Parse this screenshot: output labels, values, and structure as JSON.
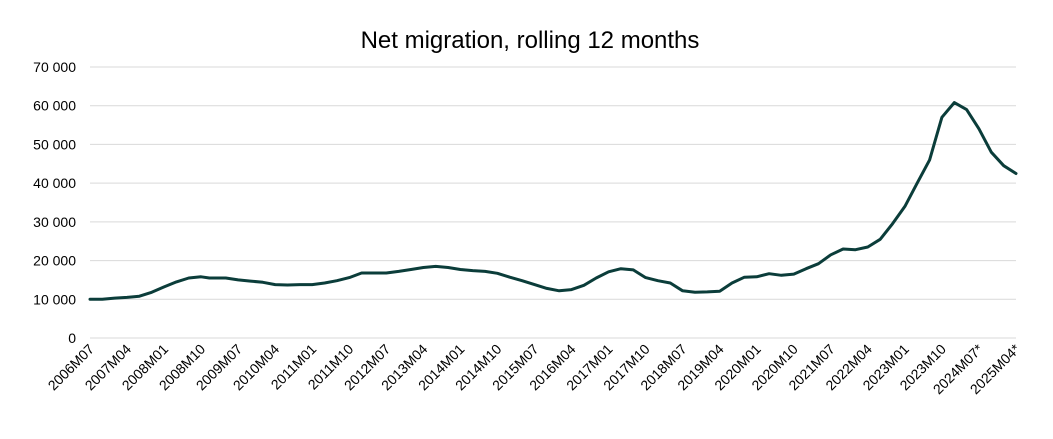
{
  "chart_data": {
    "type": "line",
    "title": "Net migration, rolling 12 months",
    "xlabel": "",
    "ylabel": "",
    "ylim": [
      0,
      70000
    ],
    "y_ticks": [
      "0",
      "10 000",
      "20 000",
      "30 000",
      "40 000",
      "50 000",
      "60 000",
      "70 000"
    ],
    "y_tick_values": [
      0,
      10000,
      20000,
      30000,
      40000,
      50000,
      60000,
      70000
    ],
    "x_start": "2006M07",
    "x_end": "2025M04",
    "x_ticks": [
      "2006M07",
      "2007M04",
      "2008M01",
      "2008M10",
      "2009M07",
      "2010M04",
      "2011M01",
      "2011M10",
      "2012M07",
      "2013M04",
      "2014M01",
      "2014M10",
      "2015M07",
      "2016M04",
      "2017M01",
      "2017M10",
      "2018M07",
      "2019M04",
      "2020M01",
      "2020M10",
      "2021M07",
      "2022M04",
      "2023M01",
      "2023M10",
      "2024M07*",
      "2025M04*"
    ],
    "grid": true,
    "legend": "none",
    "line_color": "#0b3d3a",
    "grid_color": "#d9d9d9",
    "series": [
      {
        "x": [
          "2006M07",
          "2006M10",
          "2007M01",
          "2007M04",
          "2007M07",
          "2007M10",
          "2008M01",
          "2008M04",
          "2008M07",
          "2008M10",
          "2008M12",
          "2009M04",
          "2009M07",
          "2009M10",
          "2010M01",
          "2010M04",
          "2010M07",
          "2010M10",
          "2011M01",
          "2011M04",
          "2011M07",
          "2011M10",
          "2012M01",
          "2012M04",
          "2012M07",
          "2012M10",
          "2013M01",
          "2013M04",
          "2013M07",
          "2013M10",
          "2014M01",
          "2014M04",
          "2014M07",
          "2014M10",
          "2015M01",
          "2015M04",
          "2015M07",
          "2015M10",
          "2016M01",
          "2016M04",
          "2016M07",
          "2016M10",
          "2017M01",
          "2017M04",
          "2017M07",
          "2017M10",
          "2018M01",
          "2018M04",
          "2018M07",
          "2018M10",
          "2019M01",
          "2019M04",
          "2019M07",
          "2019M10",
          "2020M01",
          "2020M04",
          "2020M07",
          "2020M10",
          "2021M01",
          "2021M04",
          "2021M07",
          "2021M10",
          "2022M01",
          "2022M04",
          "2022M07",
          "2022M10",
          "2023M01",
          "2023M04",
          "2023M07",
          "2023M10",
          "2024M01",
          "2024M04",
          "2024M07",
          "2024M10",
          "2025M01",
          "2025M04"
        ],
        "values": [
          10000,
          10000,
          10300,
          10500,
          10800,
          11800,
          13200,
          14500,
          15500,
          15800,
          15500,
          15500,
          15000,
          14700,
          14400,
          13800,
          13700,
          13800,
          13800,
          14200,
          14800,
          15600,
          16800,
          16800,
          16800,
          17200,
          17700,
          18200,
          18500,
          18200,
          17700,
          17400,
          17200,
          16700,
          15700,
          14800,
          13800,
          12800,
          12200,
          12500,
          13600,
          15500,
          17100,
          17900,
          17600,
          15600,
          14800,
          14200,
          12200,
          11800,
          11900,
          12100,
          14200,
          15700,
          15800,
          16600,
          16200,
          16500,
          17900,
          19200,
          21500,
          23000,
          22800,
          23500,
          25500,
          29500,
          34000,
          40000,
          46000,
          57000,
          60800,
          59000,
          54000,
          48000,
          44500,
          42500
        ]
      }
    ]
  }
}
